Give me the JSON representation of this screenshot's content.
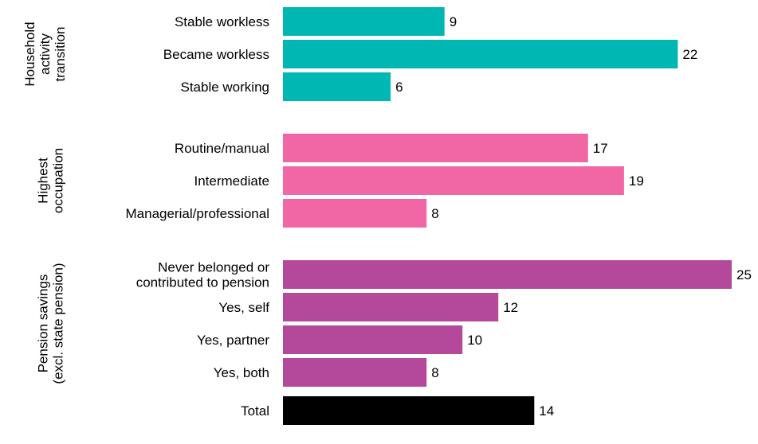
{
  "chart_data": {
    "type": "bar",
    "orientation": "horizontal",
    "xlim": [
      0,
      25
    ],
    "grid": false,
    "groups": [
      {
        "title": [
          "Household",
          "activity",
          "transition"
        ],
        "color": "#00b7b3",
        "bars": [
          {
            "category": [
              "Stable workless"
            ],
            "value": 9
          },
          {
            "category": [
              "Became workless"
            ],
            "value": 22
          },
          {
            "category": [
              "Stable working"
            ],
            "value": 6
          }
        ]
      },
      {
        "title": [
          "Highest",
          "occupation"
        ],
        "color": "#f166a5",
        "bars": [
          {
            "category": [
              "Routine/manual"
            ],
            "value": 17
          },
          {
            "category": [
              "Intermediate"
            ],
            "value": 19
          },
          {
            "category": [
              "Managerial/professional"
            ],
            "value": 8
          }
        ]
      },
      {
        "title": [
          "Pension savings",
          "(excl. state pension)"
        ],
        "color": "#b4489a",
        "bars": [
          {
            "category": [
              "Never belonged or",
              "contributed to pension"
            ],
            "value": 25
          },
          {
            "category": [
              "Yes, self"
            ],
            "value": 12
          },
          {
            "category": [
              "Yes, partner"
            ],
            "value": 10
          },
          {
            "category": [
              "Yes, both"
            ],
            "value": 8
          }
        ]
      },
      {
        "title": [],
        "color": "#000000",
        "bars": [
          {
            "category": [
              "Total"
            ],
            "value": 14
          }
        ]
      }
    ]
  }
}
